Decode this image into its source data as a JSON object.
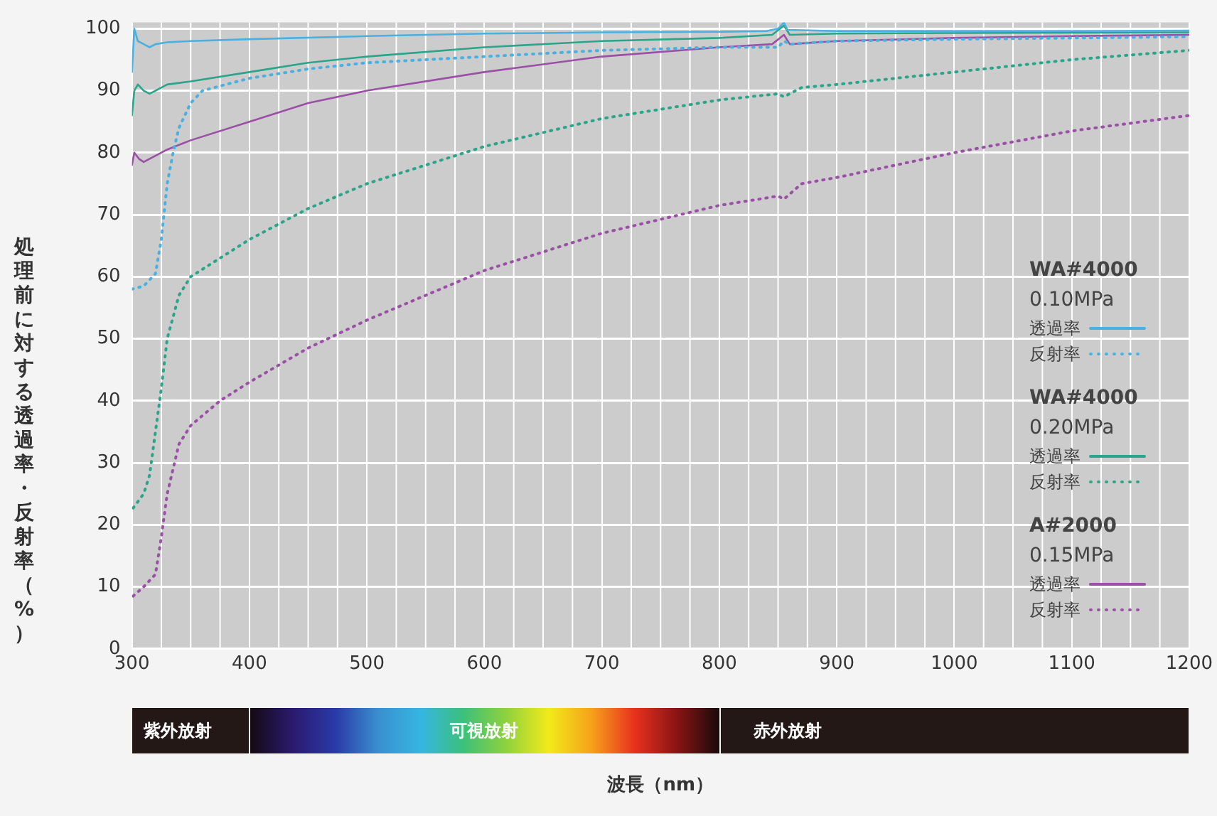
{
  "chart_data": {
    "type": "line",
    "ylabel": "処理前に対する透過率・反射率（%）",
    "xlim": [
      300,
      1200
    ],
    "xticks": [
      300,
      400,
      500,
      600,
      700,
      800,
      900,
      1000,
      1100,
      1200
    ],
    "ylim": [
      0,
      101
    ],
    "yticks": [
      0,
      10,
      20,
      30,
      40,
      50,
      60,
      70,
      80,
      90,
      100
    ],
    "grid": true,
    "legend": "right",
    "marker": "none",
    "annotations": [
      "WA#4000",
      "0.10MPa",
      "WA#4000",
      "0.20MPa",
      "A#2000",
      "0.15MPa",
      "紫外放射",
      "可視放射",
      "赤外放射",
      "波長（nm）"
    ],
    "series": [
      {
        "name": "透過率",
        "color": "#4ab0e0",
        "line_style": "solid",
        "x": [
          300,
          302,
          305,
          310,
          315,
          320,
          330,
          350,
          400,
          500,
          600,
          700,
          800,
          840,
          850,
          855,
          858,
          900,
          1000,
          1100,
          1200
        ],
        "values": [
          93,
          100,
          98,
          97.5,
          97,
          97.5,
          97.8,
          98,
          98.3,
          98.8,
          99.2,
          99.4,
          99.5,
          99.6,
          100,
          101,
          99.8,
          99.6,
          99.6,
          99.6,
          99.7
        ]
      },
      {
        "name": "反射率",
        "color": "#4ab0e0",
        "line_style": "dotted",
        "x": [
          300,
          310,
          320,
          325,
          330,
          335,
          340,
          350,
          360,
          400,
          450,
          500,
          600,
          700,
          800,
          850,
          855,
          860,
          900,
          1000,
          1100,
          1200
        ],
        "values": [
          58,
          58.5,
          60.5,
          66,
          75,
          80,
          84,
          88,
          90,
          92,
          93.5,
          94.5,
          95.5,
          96.5,
          97,
          97,
          98,
          97.5,
          98,
          98.3,
          98.5,
          98.7
        ]
      },
      {
        "name": "透過率",
        "color": "#2aa58a",
        "line_style": "solid",
        "x": [
          300,
          302,
          305,
          310,
          315,
          320,
          330,
          350,
          400,
          450,
          500,
          600,
          700,
          800,
          845,
          855,
          860,
          900,
          1000,
          1200
        ],
        "values": [
          86,
          90,
          91,
          90,
          89.5,
          90,
          91,
          91.5,
          93,
          94.5,
          95.5,
          97,
          98,
          98.5,
          99,
          100.5,
          99,
          99.2,
          99.3,
          99.4
        ]
      },
      {
        "name": "反射率",
        "color": "#2aa58a",
        "line_style": "dotted",
        "x": [
          301,
          310,
          315,
          320,
          325,
          330,
          340,
          350,
          375,
          400,
          450,
          500,
          550,
          600,
          700,
          800,
          850,
          855,
          870,
          900,
          1000,
          1100,
          1200
        ],
        "values": [
          22.7,
          25,
          28,
          35,
          42,
          50,
          57,
          60,
          63,
          66,
          71,
          75,
          78,
          81,
          85.5,
          88.5,
          89.5,
          89,
          90.5,
          91,
          93,
          95,
          96.5
        ]
      },
      {
        "name": "透過率",
        "color": "#9b4fa6",
        "line_style": "solid",
        "x": [
          300,
          302,
          306,
          310,
          320,
          330,
          350,
          400,
          450,
          500,
          600,
          700,
          800,
          845,
          855,
          860,
          900,
          1000,
          1100,
          1200
        ],
        "values": [
          78,
          80,
          79,
          78.5,
          79.5,
          80.5,
          82,
          85,
          88,
          90,
          93,
          95.5,
          97,
          97.5,
          99,
          97.5,
          98,
          98.5,
          98.8,
          99
        ]
      },
      {
        "name": "反射率",
        "color": "#9b4fa6",
        "line_style": "dotted",
        "x": [
          301,
          310,
          320,
          325,
          330,
          340,
          350,
          375,
          400,
          450,
          500,
          550,
          600,
          700,
          800,
          850,
          855,
          870,
          900,
          1000,
          1100,
          1200
        ],
        "values": [
          8.5,
          10,
          12,
          18,
          25,
          33,
          36,
          40,
          43,
          48.5,
          53,
          57,
          61,
          67,
          71.5,
          73,
          72.5,
          75,
          76,
          80,
          83.5,
          86
        ]
      }
    ]
  }
}
